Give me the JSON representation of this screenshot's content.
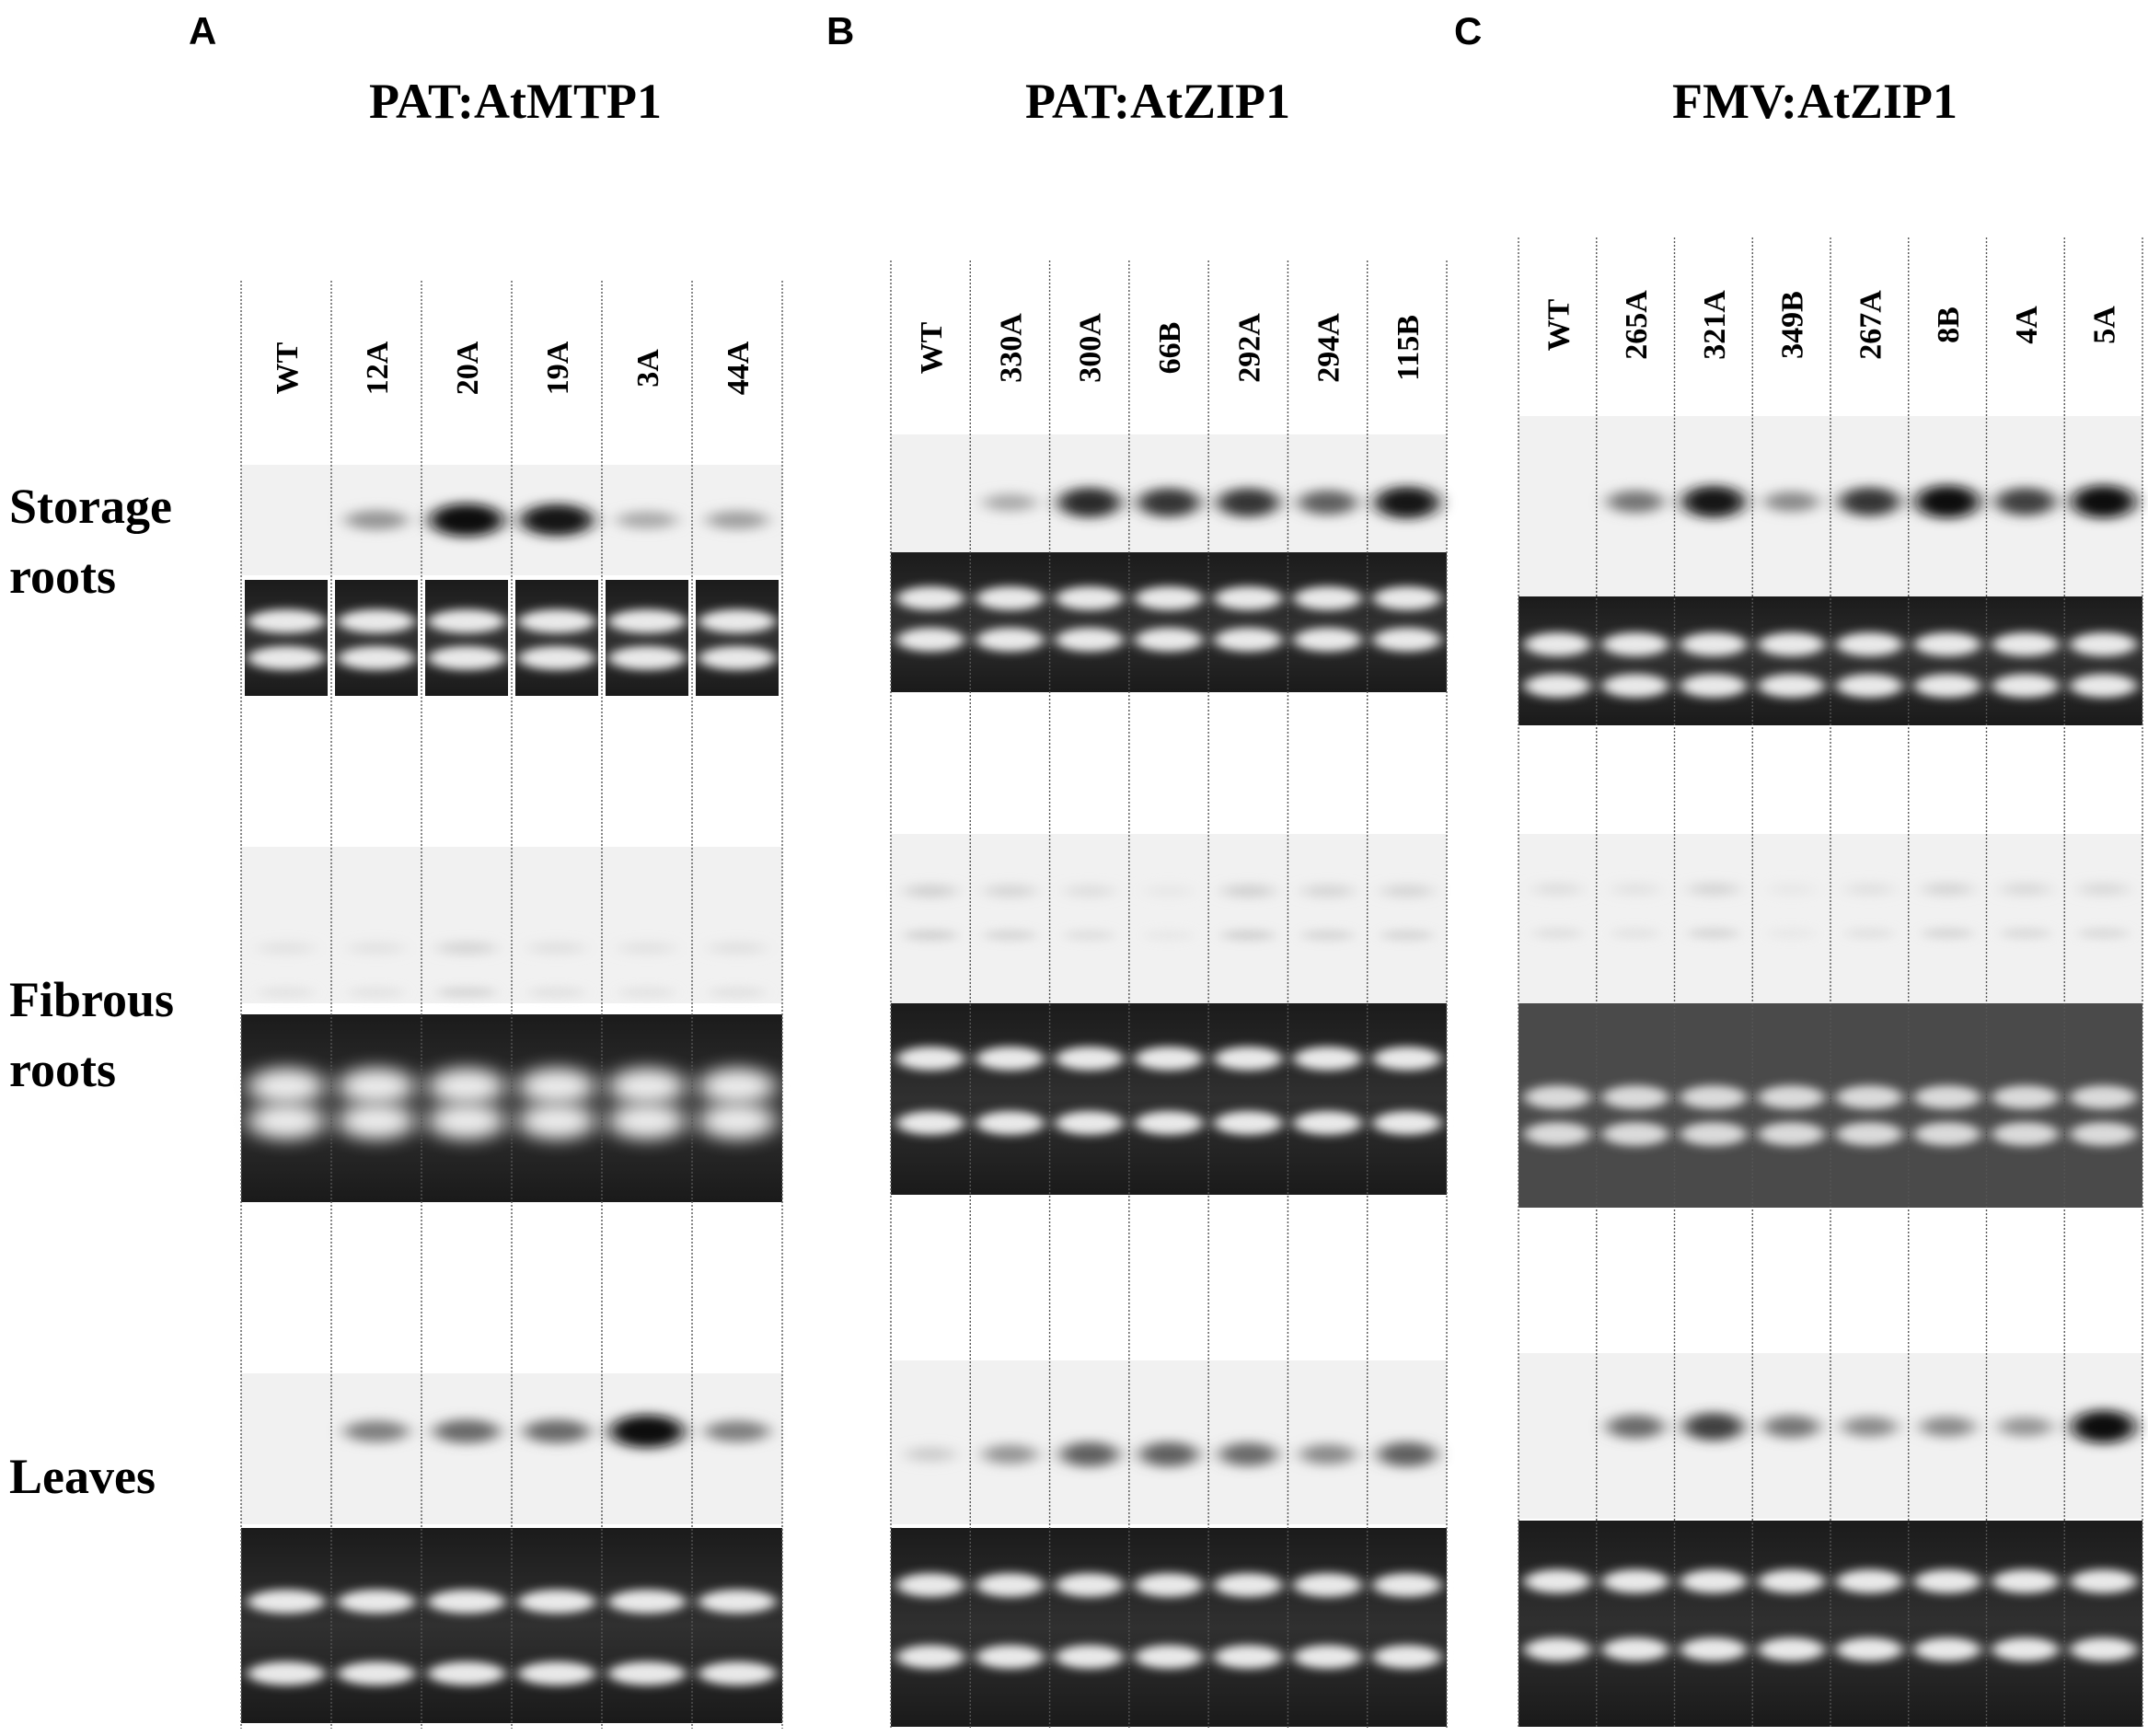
{
  "figure": {
    "row_labels": [
      {
        "lines": [
          "Storage",
          "roots"
        ]
      },
      {
        "lines": [
          "Fibrous",
          "roots"
        ]
      },
      {
        "lines": [
          "Leaves"
        ]
      }
    ],
    "panels": [
      {
        "letter": "A",
        "title": "PAT:AtMTP1",
        "lanes": [
          "WT",
          "12A",
          "20A",
          "19A",
          "3A",
          "44A"
        ],
        "signal": {
          "storage_roots": [
            0,
            0.35,
            1.0,
            0.95,
            0.25,
            0.3
          ],
          "fibrous_roots": [
            0.1,
            0.1,
            0.25,
            0.12,
            0.1,
            0.12
          ],
          "leaves": [
            0,
            0.45,
            0.55,
            0.55,
            1.0,
            0.45
          ]
        }
      },
      {
        "letter": "B",
        "title": "PAT:AtZIP1",
        "lanes": [
          "WT",
          "330A",
          "300A",
          "66B",
          "292A",
          "294A",
          "115B"
        ],
        "signal": {
          "storage_roots": [
            0,
            0.25,
            0.85,
            0.8,
            0.8,
            0.6,
            0.95
          ],
          "fibrous_roots": [
            0.3,
            0.25,
            0.15,
            0.05,
            0.3,
            0.25,
            0.25
          ],
          "leaves": [
            0.1,
            0.35,
            0.6,
            0.6,
            0.55,
            0.4,
            0.6
          ]
        }
      },
      {
        "letter": "C",
        "title": "FMV:AtZIP1",
        "lanes": [
          "WT",
          "265A",
          "321A",
          "349B",
          "267A",
          "8B",
          "4A",
          "5A"
        ],
        "signal": {
          "storage_roots": [
            0,
            0.5,
            0.95,
            0.4,
            0.8,
            1.0,
            0.75,
            1.0
          ],
          "fibrous_roots": [
            0.15,
            0.1,
            0.25,
            0.05,
            0.12,
            0.25,
            0.2,
            0.2
          ],
          "leaves": [
            0,
            0.55,
            0.75,
            0.5,
            0.4,
            0.4,
            0.35,
            1.0
          ]
        }
      }
    ]
  }
}
